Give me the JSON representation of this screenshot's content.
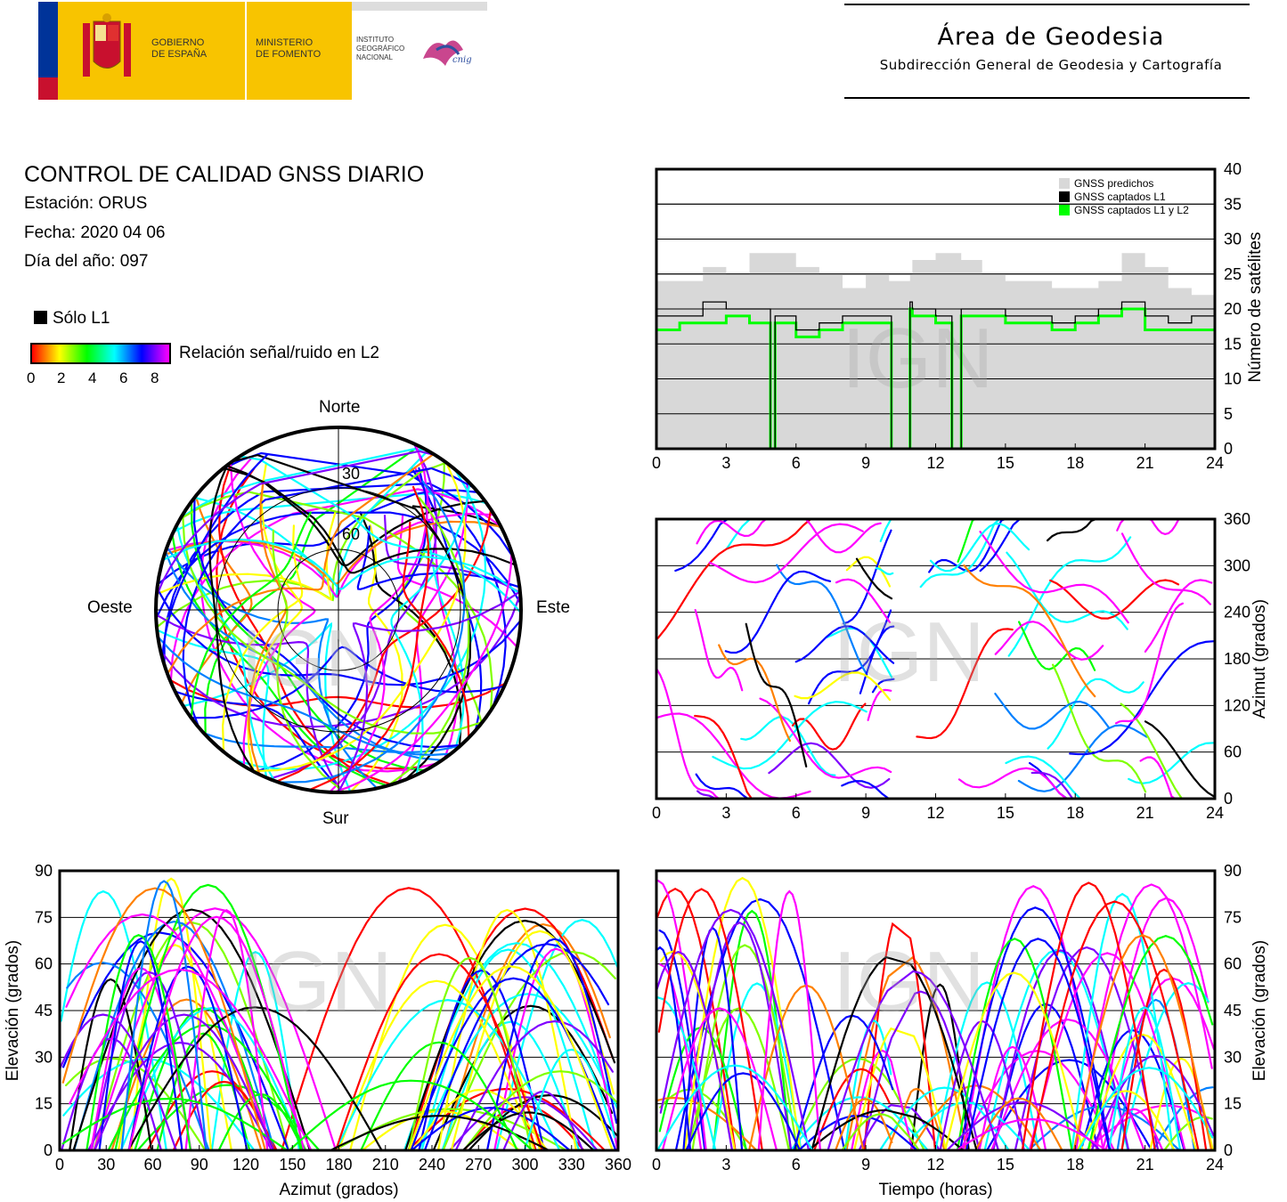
{
  "header": {
    "org1": "GOBIERNO\nDE ESPAÑA",
    "org2": "MINISTERIO\nDE FOMENTO",
    "org3": "INSTITUTO\nGEOGRÁFICO\nNACIONAL",
    "logo_text": "cnig",
    "title": "Área de Geodesia",
    "subtitle": "Subdirección General de Geodesia y Cartografía"
  },
  "report": {
    "title": "CONTROL DE CALIDAD GNSS DIARIO",
    "station": "Estación: ORUS",
    "date": "Fecha: 2020 04 06",
    "doy": "Día del año: 097"
  },
  "legend": {
    "l1_only": "Sólo L1",
    "snr_label": "Relación señal/ruido en L2",
    "snr_ticks": [
      "0",
      "2",
      "4",
      "6",
      "8"
    ]
  },
  "watermark": "IGN",
  "colors": {
    "predicted": "#d8d8d8",
    "l1": "#000000",
    "l1l2": "#00ff00",
    "red": "#ff0000",
    "magenta": "#ff00ff"
  },
  "chart_data": [
    {
      "type": "area",
      "id": "satellites",
      "x_ticks": [
        "0",
        "3",
        "6",
        "9",
        "12",
        "15",
        "18",
        "21",
        "24"
      ],
      "y_ticks": [
        "0",
        "5",
        "10",
        "15",
        "20",
        "25",
        "30",
        "35",
        "40"
      ],
      "ylabel": "Número de satélites",
      "xlim": [
        0,
        24
      ],
      "ylim": [
        0,
        40
      ],
      "legend": [
        "GNSS predichos",
        "GNSS captados L1",
        "GNSS captados L1 y L2"
      ],
      "legend_position": "top-right",
      "x": [
        0,
        1,
        2,
        3,
        4,
        4.9,
        5.1,
        6,
        7,
        8,
        9,
        10,
        10.1,
        10.9,
        11,
        12,
        12.7,
        13.1,
        14,
        15,
        16,
        17,
        18,
        19,
        20,
        21,
        22,
        23,
        24
      ],
      "series": [
        {
          "name": "GNSS predichos",
          "values": [
            24,
            24,
            26,
            25,
            28,
            28,
            28,
            26,
            25,
            23,
            25,
            24,
            24,
            25,
            27,
            28,
            28,
            27,
            25,
            24,
            24,
            23,
            23,
            24,
            28,
            26,
            23,
            22,
            24
          ]
        },
        {
          "name": "GNSS captados L1",
          "values": [
            19,
            19,
            21,
            20,
            20,
            0,
            19,
            17,
            18,
            19,
            19,
            19,
            0,
            21,
            20,
            19,
            0,
            20,
            20,
            19,
            19,
            18,
            19,
            20,
            21,
            19,
            18,
            19,
            19
          ]
        },
        {
          "name": "GNSS captados L1 y L2",
          "values": [
            17,
            18,
            18,
            19,
            18,
            0,
            18,
            16,
            17,
            18,
            18,
            18,
            0,
            20,
            19,
            18,
            0,
            19,
            19,
            18,
            18,
            17,
            18,
            19,
            20,
            17,
            17,
            17,
            18
          ]
        }
      ]
    },
    {
      "type": "scatter",
      "id": "azimuth_time",
      "x_ticks": [
        "0",
        "3",
        "6",
        "9",
        "12",
        "15",
        "18",
        "21",
        "24"
      ],
      "y_ticks": [
        "0",
        "60",
        "120",
        "180",
        "240",
        "300",
        "360"
      ],
      "ylabel": "Azimut (grados)",
      "xlim": [
        0,
        24
      ],
      "ylim": [
        0,
        360
      ]
    },
    {
      "type": "scatter",
      "id": "elevation_azimuth",
      "x_ticks": [
        "0",
        "30",
        "60",
        "90",
        "120",
        "150",
        "180",
        "210",
        "240",
        "270",
        "300",
        "330",
        "360"
      ],
      "y_ticks": [
        "0",
        "15",
        "30",
        "45",
        "60",
        "75",
        "90"
      ],
      "xlabel": "Azimut (grados)",
      "ylabel": "Elevación (grados)",
      "xlim": [
        0,
        360
      ],
      "ylim": [
        0,
        90
      ]
    },
    {
      "type": "scatter",
      "id": "elevation_time",
      "x_ticks": [
        "0",
        "3",
        "6",
        "9",
        "12",
        "15",
        "18",
        "21",
        "24"
      ],
      "y_ticks": [
        "0",
        "15",
        "30",
        "45",
        "60",
        "75",
        "90"
      ],
      "xlabel": "Tiempo (horas)",
      "ylabel": "Elevación (grados)",
      "xlim": [
        0,
        24
      ],
      "ylim": [
        0,
        90
      ]
    },
    {
      "type": "scatter",
      "id": "skyplot",
      "directions": [
        "Norte",
        "Sur",
        "Oeste",
        "Este"
      ],
      "ring_labels": [
        "30",
        "60"
      ]
    }
  ]
}
